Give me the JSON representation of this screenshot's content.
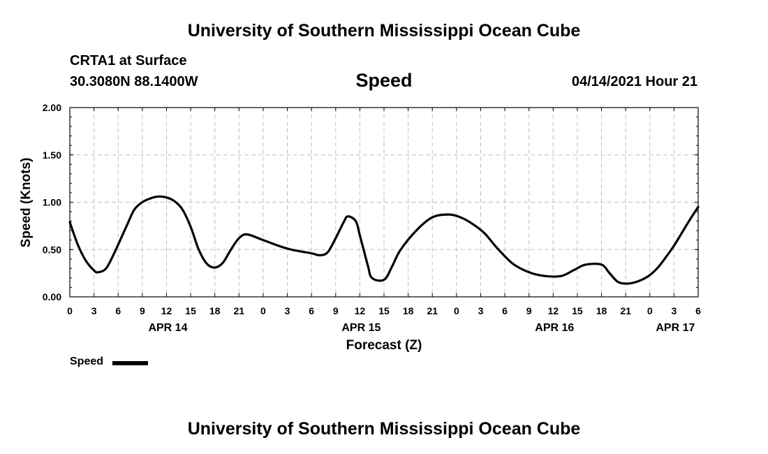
{
  "header": {
    "organization": "University of Southern Mississippi Ocean Cube",
    "station": "CRTA1 at Surface",
    "coordinates": "30.3080N  88.1400W",
    "datetime": "04/14/2021 Hour 21"
  },
  "footer": {
    "organization": "University of Southern Mississippi Ocean Cube"
  },
  "chart_data": {
    "type": "line",
    "title": "Speed",
    "xlabel": "Forecast (Z)",
    "ylabel": "Speed (Knots)",
    "ylim": [
      0,
      2
    ],
    "yticks": [
      "0.00",
      "0.50",
      "1.00",
      "1.50",
      "2.00"
    ],
    "xlim_hours": [
      0,
      78
    ],
    "x_tick_labels": [
      "0",
      "3",
      "6",
      "9",
      "12",
      "15",
      "18",
      "21",
      "0",
      "3",
      "6",
      "9",
      "12",
      "15",
      "18",
      "21",
      "0",
      "3",
      "6",
      "9",
      "12",
      "15",
      "18",
      "21",
      "0",
      "3",
      "6"
    ],
    "date_labels": [
      {
        "label": "APR 14",
        "hour": 12
      },
      {
        "label": "APR 15",
        "hour": 36
      },
      {
        "label": "APR 16",
        "hour": 60
      },
      {
        "label": "APR 17",
        "hour": 75
      }
    ],
    "grid": true,
    "legend": "bottom-left",
    "series": [
      {
        "name": "Speed",
        "color": "#000000",
        "x_hours": [
          0,
          1,
          2,
          3,
          3.5,
          4.5,
          5.5,
          7,
          8,
          9,
          10,
          11,
          12,
          13,
          14,
          15,
          16,
          17,
          18,
          19,
          20,
          21,
          22,
          24,
          27,
          30,
          31,
          32,
          33,
          34,
          34.5,
          35.5,
          36,
          37,
          37.5,
          39,
          40,
          41,
          43,
          45,
          47,
          48.5,
          50,
          51.5,
          53,
          55,
          57,
          59,
          61,
          62.5,
          64,
          66,
          67,
          68,
          69,
          70,
          71,
          72,
          73,
          74,
          75,
          76,
          77,
          78
        ],
        "values": [
          0.79,
          0.55,
          0.38,
          0.28,
          0.26,
          0.3,
          0.46,
          0.74,
          0.92,
          1.0,
          1.04,
          1.06,
          1.05,
          1.01,
          0.92,
          0.74,
          0.5,
          0.35,
          0.31,
          0.36,
          0.5,
          0.62,
          0.66,
          0.6,
          0.51,
          0.46,
          0.44,
          0.47,
          0.62,
          0.79,
          0.85,
          0.8,
          0.65,
          0.33,
          0.2,
          0.18,
          0.32,
          0.49,
          0.7,
          0.84,
          0.87,
          0.84,
          0.77,
          0.67,
          0.52,
          0.35,
          0.26,
          0.22,
          0.22,
          0.28,
          0.34,
          0.34,
          0.25,
          0.16,
          0.14,
          0.15,
          0.18,
          0.23,
          0.31,
          0.42,
          0.54,
          0.68,
          0.82,
          0.95
        ]
      }
    ]
  },
  "legend": {
    "label": "Speed"
  }
}
